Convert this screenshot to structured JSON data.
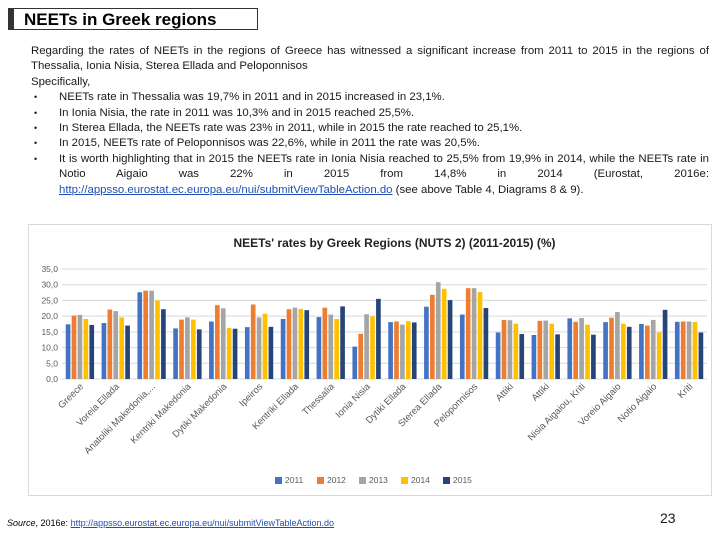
{
  "header": {
    "title": "NEETs in Greek regions"
  },
  "body": {
    "intro": "Regarding the rates of NEETs in the regions of Greece has witnessed a significant increase from 2011 to 2015 in the regions of Thessalia, Ionia Nisia, Sterea Ellada and Peloponnisos",
    "specifically": "Specifically,",
    "bullets": [
      {
        "text": "NEETs rate in Thessalia was 19,7% in 2011 and in 2015 increased in 23,1%."
      },
      {
        "text": "In Ionia Nisia,  the rate in 2011 was 10,3% and in 2015 reached 25,5%."
      },
      {
        "text": "In Sterea Ellada, the NEETs rate was 23% in 2011, while in 2015 the rate reached to 25,1%."
      },
      {
        "text": "In 2015, NEETs rate of Peloponnisos was  22,6%, while in 2011 the rate was 20,5%."
      },
      {
        "text": "It is worth highlighting that in 2015 the NEETs rate in Ionia Nisia reached to 25,5% from 19,9% in 2014, while the NEETs rate in Notio Aigaio was 22% in 2015 from 14,8% in 2014 (Eurostat, 2016e: ",
        "link": "http://appsso.eurostat.ec.europa.eu/nui/submitViewTableAction.do",
        "after": " (see above Table 4, Diagrams 8 & 9)."
      }
    ]
  },
  "footer": {
    "source_label": "Source",
    "source_mid": ", 2016e: ",
    "source_link": "http://appsso.eurostat.ec.europa.eu/nui/submitViewTableAction.do",
    "page_number": "23"
  },
  "chart_data": {
    "type": "bar",
    "title": "NEETs' rates by Greek Regions (NUTS 2) (2011-2015) (%)",
    "ylim": [
      0,
      35
    ],
    "ytick_labels": [
      "0,0",
      "5,0",
      "10,0",
      "15,0",
      "20,0",
      "25,0",
      "30,0",
      "35,0"
    ],
    "grid": true,
    "legend_position": "bottom",
    "categories": [
      "Greece",
      "Voreia Ellada",
      "Anatoliki Makedonia,...",
      "Kentriki Makedonia",
      "Dytiki Makedonia",
      "Ipeiros",
      "Kentriki Ellada",
      "Thessalia",
      "Ionia Nisia",
      "Dytiki Ellada",
      "Sterea Ellada",
      "Peloponnisos",
      "Attiki",
      "Attiki",
      "Nisia Aigaiou, Kriti",
      "Voreio Aigaio",
      "Notio Aigaio",
      "Kriti"
    ],
    "series": [
      {
        "name": "2011",
        "color": "#4472c4",
        "values": [
          17.4,
          17.8,
          27.6,
          16.1,
          18.3,
          16.5,
          19.1,
          19.7,
          10.3,
          18.1,
          23.0,
          20.5,
          14.8,
          14.0,
          19.3,
          18.1,
          17.5,
          18.2
        ]
      },
      {
        "name": "2012",
        "color": "#ed7d31",
        "values": [
          20.2,
          22.1,
          28.1,
          18.9,
          23.5,
          23.7,
          22.2,
          22.7,
          14.4,
          18.3,
          26.8,
          28.9,
          18.8,
          18.5,
          18.2,
          19.5,
          17.0,
          18.3
        ]
      },
      {
        "name": "2013",
        "color": "#a5a5a5",
        "values": [
          20.4,
          21.6,
          28.1,
          19.6,
          22.5,
          19.6,
          22.7,
          20.5,
          20.6,
          17.3,
          30.8,
          28.9,
          18.7,
          18.6,
          19.4,
          21.3,
          18.8,
          18.3
        ]
      },
      {
        "name": "2014",
        "color": "#ffc000",
        "values": [
          19.1,
          19.6,
          25.0,
          18.9,
          16.2,
          20.8,
          22.3,
          19.1,
          19.9,
          18.4,
          28.7,
          27.7,
          17.6,
          17.6,
          17.3,
          17.6,
          14.8,
          18.1
        ]
      },
      {
        "name": "2015",
        "color": "#264478",
        "values": [
          17.2,
          17.0,
          22.2,
          15.8,
          16.0,
          16.6,
          21.9,
          23.1,
          25.5,
          18.0,
          25.1,
          22.6,
          14.3,
          14.2,
          14.1,
          16.6,
          22.0,
          14.8
        ]
      }
    ]
  }
}
